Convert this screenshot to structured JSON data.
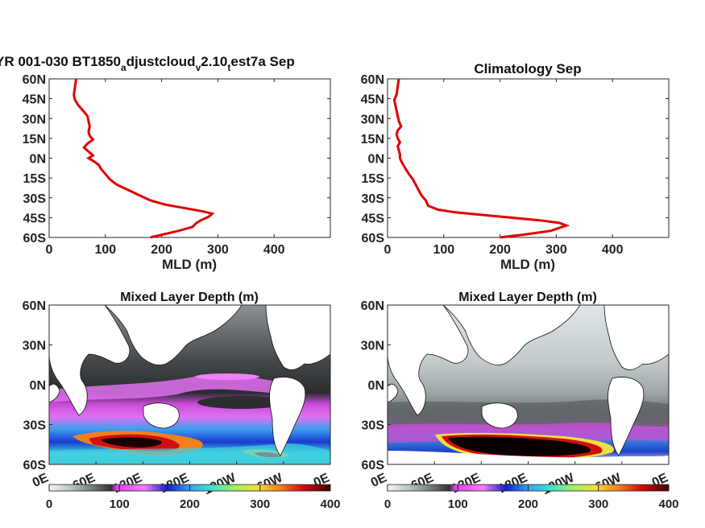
{
  "figure": {
    "panels": [
      {
        "id": "profile-model",
        "title_main": "YR 001-030 BT1850",
        "title_sub1": "a",
        "title_mid1": "djustcloud",
        "title_sub2": "v",
        "title_mid2": "2.10",
        "title_sub3": "t",
        "title_end": "est7a Sep",
        "xlabel": "MLD (m)"
      },
      {
        "id": "profile-climatology",
        "title": "Climatology Sep",
        "xlabel": "MLD (m)"
      },
      {
        "id": "map-model",
        "title": "Mixed Layer Depth (m)"
      },
      {
        "id": "map-climatology",
        "title": "Mixed Layer Depth (m)"
      }
    ],
    "colorbar": {
      "ticks": [
        "0",
        "100",
        "200",
        "300",
        "400"
      ],
      "colors": [
        "#f4f8f8",
        "#b7c0c2",
        "#6e7578",
        "#2f3133",
        "#e040e8",
        "#f080f8",
        "#1020c0",
        "#3aa0f0",
        "#40e0d0",
        "#a0f060",
        "#f0e040",
        "#f08020",
        "#d01010",
        "#400000"
      ]
    },
    "lat_ticks_profile": [
      "60N",
      "45N",
      "30N",
      "15N",
      "0N",
      "15S",
      "30S",
      "45S",
      "60S"
    ],
    "lat_ticks_map": [
      "60N",
      "30N",
      "0N",
      "30S",
      "60S"
    ],
    "lon_ticks_map": [
      "0E",
      "60E",
      "120E",
      "180E",
      "120W",
      "60W",
      "0E"
    ]
  },
  "chart_data": [
    {
      "type": "line",
      "title": "YR 001-030 BT1850_adjustcloud_v2.10_test7a Sep",
      "xlabel": "MLD (m)",
      "ylabel": "",
      "xlim": [
        0,
        500
      ],
      "ylim": [
        -60,
        60
      ],
      "xticks": [
        0,
        100,
        200,
        300,
        400
      ],
      "yticks": [
        "60S",
        "45S",
        "30S",
        "15S",
        "0N",
        "15N",
        "30N",
        "45N",
        "60N"
      ],
      "series": [
        {
          "color": "#e00000",
          "x": [
            180,
            200,
            230,
            255,
            262,
            270,
            285,
            290,
            270,
            230,
            205,
            180,
            160,
            140,
            120,
            108,
            100,
            92,
            88,
            78,
            70,
            78,
            70,
            62,
            68,
            78,
            72,
            70,
            72,
            70,
            68,
            60,
            52,
            46,
            44,
            46,
            48
          ],
          "y": [
            -60,
            -58,
            -55,
            -52,
            -49,
            -47,
            -44,
            -42,
            -40,
            -37,
            -35,
            -32,
            -28,
            -24,
            -20,
            -16,
            -12,
            -8,
            -5,
            -2,
            0,
            2,
            5,
            8,
            11,
            14,
            17,
            20,
            24,
            28,
            32,
            36,
            40,
            44,
            48,
            54,
            60
          ]
        }
      ]
    },
    {
      "type": "line",
      "title": "Climatology Sep",
      "xlabel": "MLD (m)",
      "ylabel": "",
      "xlim": [
        0,
        500
      ],
      "ylim": [
        -60,
        60
      ],
      "xticks": [
        0,
        100,
        200,
        300,
        400
      ],
      "yticks": [
        "60S",
        "45S",
        "30S",
        "15S",
        "0N",
        "15N",
        "30N",
        "45N",
        "60N"
      ],
      "series": [
        {
          "color": "#e00000",
          "x": [
            200,
            240,
            290,
            318,
            305,
            270,
            220,
            170,
            120,
            90,
            72,
            68,
            60,
            55,
            50,
            45,
            38,
            32,
            28,
            24,
            22,
            22,
            20,
            18,
            22,
            18,
            16,
            18,
            24,
            20,
            18,
            16,
            14,
            12,
            16,
            18,
            20
          ],
          "y": [
            -60,
            -58,
            -55,
            -51,
            -49,
            -47,
            -45,
            -43,
            -41,
            -39,
            -36,
            -32,
            -28,
            -24,
            -20,
            -16,
            -12,
            -8,
            -5,
            -2,
            0,
            3,
            6,
            9,
            12,
            15,
            18,
            21,
            24,
            28,
            32,
            36,
            40,
            44,
            48,
            54,
            60
          ]
        }
      ]
    },
    {
      "type": "heatmap",
      "title": "Mixed Layer Depth (m)",
      "xlabel": "",
      "ylabel": "",
      "xticks": [
        "0E",
        "60E",
        "120E",
        "180E",
        "120W",
        "60W",
        "0E"
      ],
      "yticks": [
        "60N",
        "30N",
        "0N",
        "30S",
        "60S"
      ],
      "colorbar_range": [
        0,
        400
      ]
    },
    {
      "type": "heatmap",
      "title": "Mixed Layer Depth (m)",
      "xlabel": "",
      "ylabel": "",
      "xticks": [
        "0E",
        "60E",
        "120E",
        "180E",
        "120W",
        "60W",
        "0E"
      ],
      "yticks": [
        "60N",
        "30N",
        "0N",
        "30S",
        "60S"
      ],
      "colorbar_range": [
        0,
        400
      ]
    }
  ]
}
